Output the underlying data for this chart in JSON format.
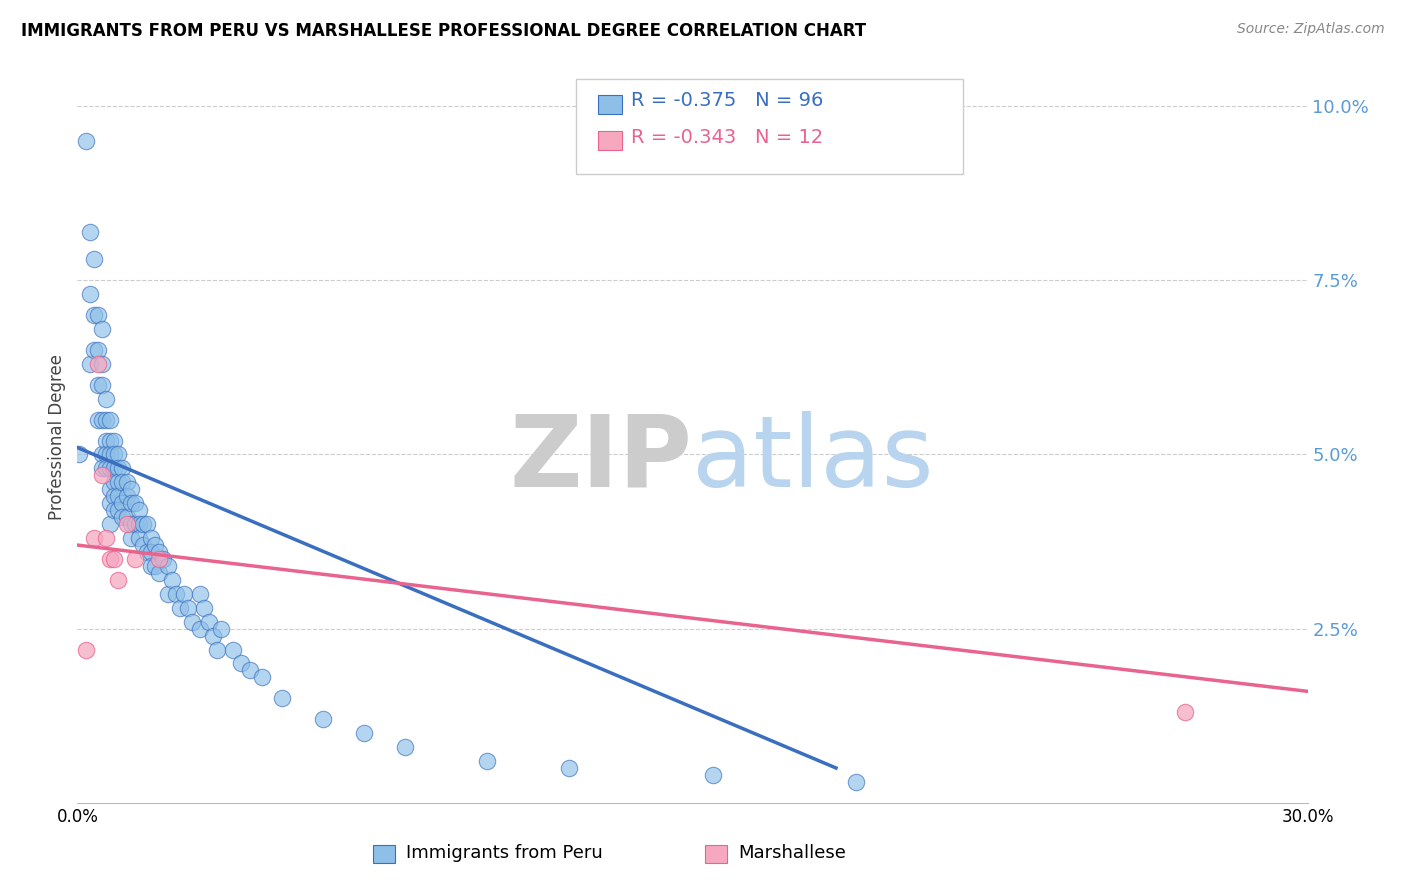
{
  "title": "IMMIGRANTS FROM PERU VS MARSHALLESE PROFESSIONAL DEGREE CORRELATION CHART",
  "source": "Source: ZipAtlas.com",
  "ylabel": "Professional Degree",
  "right_yticks": [
    "10.0%",
    "7.5%",
    "5.0%",
    "2.5%"
  ],
  "right_ytick_vals": [
    0.1,
    0.075,
    0.05,
    0.025
  ],
  "xlim": [
    0.0,
    0.3
  ],
  "ylim": [
    0.0,
    0.105
  ],
  "legend_blue_r": "R = -0.375",
  "legend_blue_n": "N = 96",
  "legend_pink_r": "R = -0.343",
  "legend_pink_n": "N = 12",
  "color_blue": "#8dbfe8",
  "color_pink": "#f5a8c0",
  "color_blue_line": "#3a6fbf",
  "color_pink_line": "#e8638e",
  "peru_x": [
    0.0005,
    0.002,
    0.003,
    0.003,
    0.003,
    0.004,
    0.004,
    0.004,
    0.005,
    0.005,
    0.005,
    0.005,
    0.006,
    0.006,
    0.006,
    0.006,
    0.006,
    0.006,
    0.007,
    0.007,
    0.007,
    0.007,
    0.007,
    0.008,
    0.008,
    0.008,
    0.008,
    0.008,
    0.008,
    0.008,
    0.009,
    0.009,
    0.009,
    0.009,
    0.009,
    0.009,
    0.01,
    0.01,
    0.01,
    0.01,
    0.01,
    0.011,
    0.011,
    0.011,
    0.011,
    0.012,
    0.012,
    0.012,
    0.013,
    0.013,
    0.013,
    0.013,
    0.014,
    0.014,
    0.015,
    0.015,
    0.015,
    0.016,
    0.016,
    0.017,
    0.017,
    0.018,
    0.018,
    0.018,
    0.019,
    0.019,
    0.02,
    0.02,
    0.021,
    0.022,
    0.022,
    0.023,
    0.024,
    0.025,
    0.026,
    0.027,
    0.028,
    0.03,
    0.03,
    0.031,
    0.032,
    0.033,
    0.034,
    0.035,
    0.038,
    0.04,
    0.042,
    0.045,
    0.05,
    0.06,
    0.07,
    0.08,
    0.1,
    0.12,
    0.155,
    0.19
  ],
  "peru_y": [
    0.05,
    0.095,
    0.082,
    0.073,
    0.063,
    0.078,
    0.07,
    0.065,
    0.07,
    0.065,
    0.06,
    0.055,
    0.068,
    0.063,
    0.06,
    0.055,
    0.05,
    0.048,
    0.058,
    0.055,
    0.052,
    0.05,
    0.048,
    0.055,
    0.052,
    0.05,
    0.048,
    0.045,
    0.043,
    0.04,
    0.052,
    0.05,
    0.048,
    0.046,
    0.044,
    0.042,
    0.05,
    0.048,
    0.046,
    0.044,
    0.042,
    0.048,
    0.046,
    0.043,
    0.041,
    0.046,
    0.044,
    0.041,
    0.045,
    0.043,
    0.04,
    0.038,
    0.043,
    0.04,
    0.042,
    0.04,
    0.038,
    0.04,
    0.037,
    0.04,
    0.036,
    0.038,
    0.036,
    0.034,
    0.037,
    0.034,
    0.036,
    0.033,
    0.035,
    0.034,
    0.03,
    0.032,
    0.03,
    0.028,
    0.03,
    0.028,
    0.026,
    0.03,
    0.025,
    0.028,
    0.026,
    0.024,
    0.022,
    0.025,
    0.022,
    0.02,
    0.019,
    0.018,
    0.015,
    0.012,
    0.01,
    0.008,
    0.006,
    0.005,
    0.004,
    0.003
  ],
  "marsh_x": [
    0.002,
    0.004,
    0.005,
    0.006,
    0.007,
    0.008,
    0.009,
    0.01,
    0.012,
    0.014,
    0.02,
    0.27
  ],
  "marsh_y": [
    0.022,
    0.038,
    0.063,
    0.047,
    0.038,
    0.035,
    0.035,
    0.032,
    0.04,
    0.035,
    0.035,
    0.013
  ],
  "peru_trend_x": [
    0.0,
    0.185
  ],
  "peru_trend_y": [
    0.051,
    0.005
  ],
  "marsh_trend_x": [
    0.0,
    0.3
  ],
  "marsh_trend_y": [
    0.037,
    0.016
  ]
}
